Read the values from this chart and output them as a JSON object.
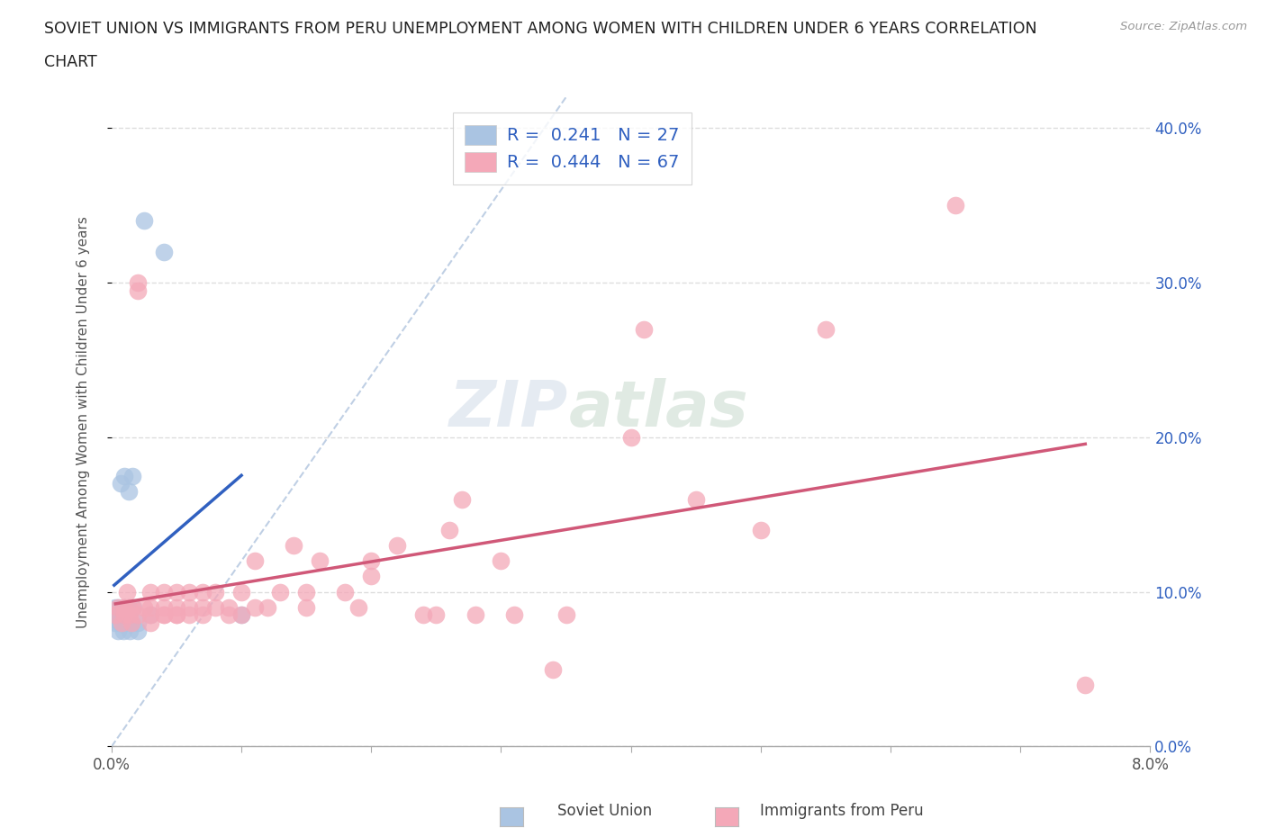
{
  "title_line1": "SOVIET UNION VS IMMIGRANTS FROM PERU UNEMPLOYMENT AMONG WOMEN WITH CHILDREN UNDER 6 YEARS CORRELATION",
  "title_line2": "CHART",
  "source": "Source: ZipAtlas.com",
  "ylabel": "Unemployment Among Women with Children Under 6 years",
  "xlim": [
    0.0,
    0.08
  ],
  "ylim": [
    0.0,
    0.42
  ],
  "xticks": [
    0.0,
    0.01,
    0.02,
    0.03,
    0.04,
    0.05,
    0.06,
    0.07,
    0.08
  ],
  "xticklabels_sparse": [
    "0.0%",
    "",
    "",
    "",
    "",
    "",
    "",
    "",
    "8.0%"
  ],
  "yticks": [
    0.0,
    0.1,
    0.2,
    0.3,
    0.4
  ],
  "yticklabels_right": [
    "0.0%",
    "10.0%",
    "20.0%",
    "30.0%",
    "40.0%"
  ],
  "soviet_color": "#aac4e2",
  "peru_color": "#f4a8b8",
  "soviet_line_color": "#3060c0",
  "peru_line_color": "#d05878",
  "diagonal_color": "#b0c4de",
  "legend_R_soviet": "R =  0.241   N = 27",
  "legend_R_peru": "R =  0.444   N = 67",
  "soviet_x": [
    0.0002,
    0.0003,
    0.0003,
    0.0004,
    0.0005,
    0.0005,
    0.0006,
    0.0007,
    0.0007,
    0.0008,
    0.0009,
    0.001,
    0.001,
    0.001,
    0.0012,
    0.0013,
    0.0013,
    0.0014,
    0.0015,
    0.0016,
    0.0017,
    0.002,
    0.002,
    0.0025,
    0.003,
    0.004,
    0.01
  ],
  "soviet_y": [
    0.085,
    0.08,
    0.09,
    0.085,
    0.075,
    0.09,
    0.08,
    0.17,
    0.08,
    0.085,
    0.075,
    0.09,
    0.08,
    0.175,
    0.085,
    0.165,
    0.09,
    0.075,
    0.08,
    0.175,
    0.09,
    0.08,
    0.075,
    0.34,
    0.085,
    0.32,
    0.085
  ],
  "peru_x": [
    0.0003,
    0.0005,
    0.0008,
    0.001,
    0.001,
    0.0012,
    0.0013,
    0.0014,
    0.0015,
    0.0016,
    0.002,
    0.002,
    0.002,
    0.0025,
    0.003,
    0.003,
    0.003,
    0.003,
    0.004,
    0.004,
    0.004,
    0.004,
    0.005,
    0.005,
    0.005,
    0.005,
    0.006,
    0.006,
    0.006,
    0.007,
    0.007,
    0.007,
    0.008,
    0.008,
    0.009,
    0.009,
    0.01,
    0.01,
    0.011,
    0.011,
    0.012,
    0.013,
    0.014,
    0.015,
    0.015,
    0.016,
    0.018,
    0.019,
    0.02,
    0.02,
    0.022,
    0.024,
    0.025,
    0.026,
    0.027,
    0.028,
    0.03,
    0.031,
    0.034,
    0.035,
    0.04,
    0.041,
    0.045,
    0.05,
    0.055,
    0.065,
    0.075
  ],
  "peru_y": [
    0.085,
    0.09,
    0.08,
    0.085,
    0.09,
    0.1,
    0.09,
    0.085,
    0.08,
    0.09,
    0.085,
    0.295,
    0.3,
    0.09,
    0.08,
    0.09,
    0.1,
    0.085,
    0.085,
    0.09,
    0.1,
    0.085,
    0.085,
    0.09,
    0.1,
    0.085,
    0.09,
    0.1,
    0.085,
    0.09,
    0.1,
    0.085,
    0.09,
    0.1,
    0.085,
    0.09,
    0.1,
    0.085,
    0.09,
    0.12,
    0.09,
    0.1,
    0.13,
    0.09,
    0.1,
    0.12,
    0.1,
    0.09,
    0.11,
    0.12,
    0.13,
    0.085,
    0.085,
    0.14,
    0.16,
    0.085,
    0.12,
    0.085,
    0.05,
    0.085,
    0.2,
    0.27,
    0.16,
    0.14,
    0.27,
    0.35,
    0.04
  ],
  "background_color": "#ffffff",
  "grid_color": "#dddddd",
  "watermark_zip": "ZIP",
  "watermark_atlas": "atlas",
  "title_color": "#222222",
  "axis_label_color": "#555555",
  "bottom_legend_soviet": "Soviet Union",
  "bottom_legend_peru": "Immigrants from Peru"
}
